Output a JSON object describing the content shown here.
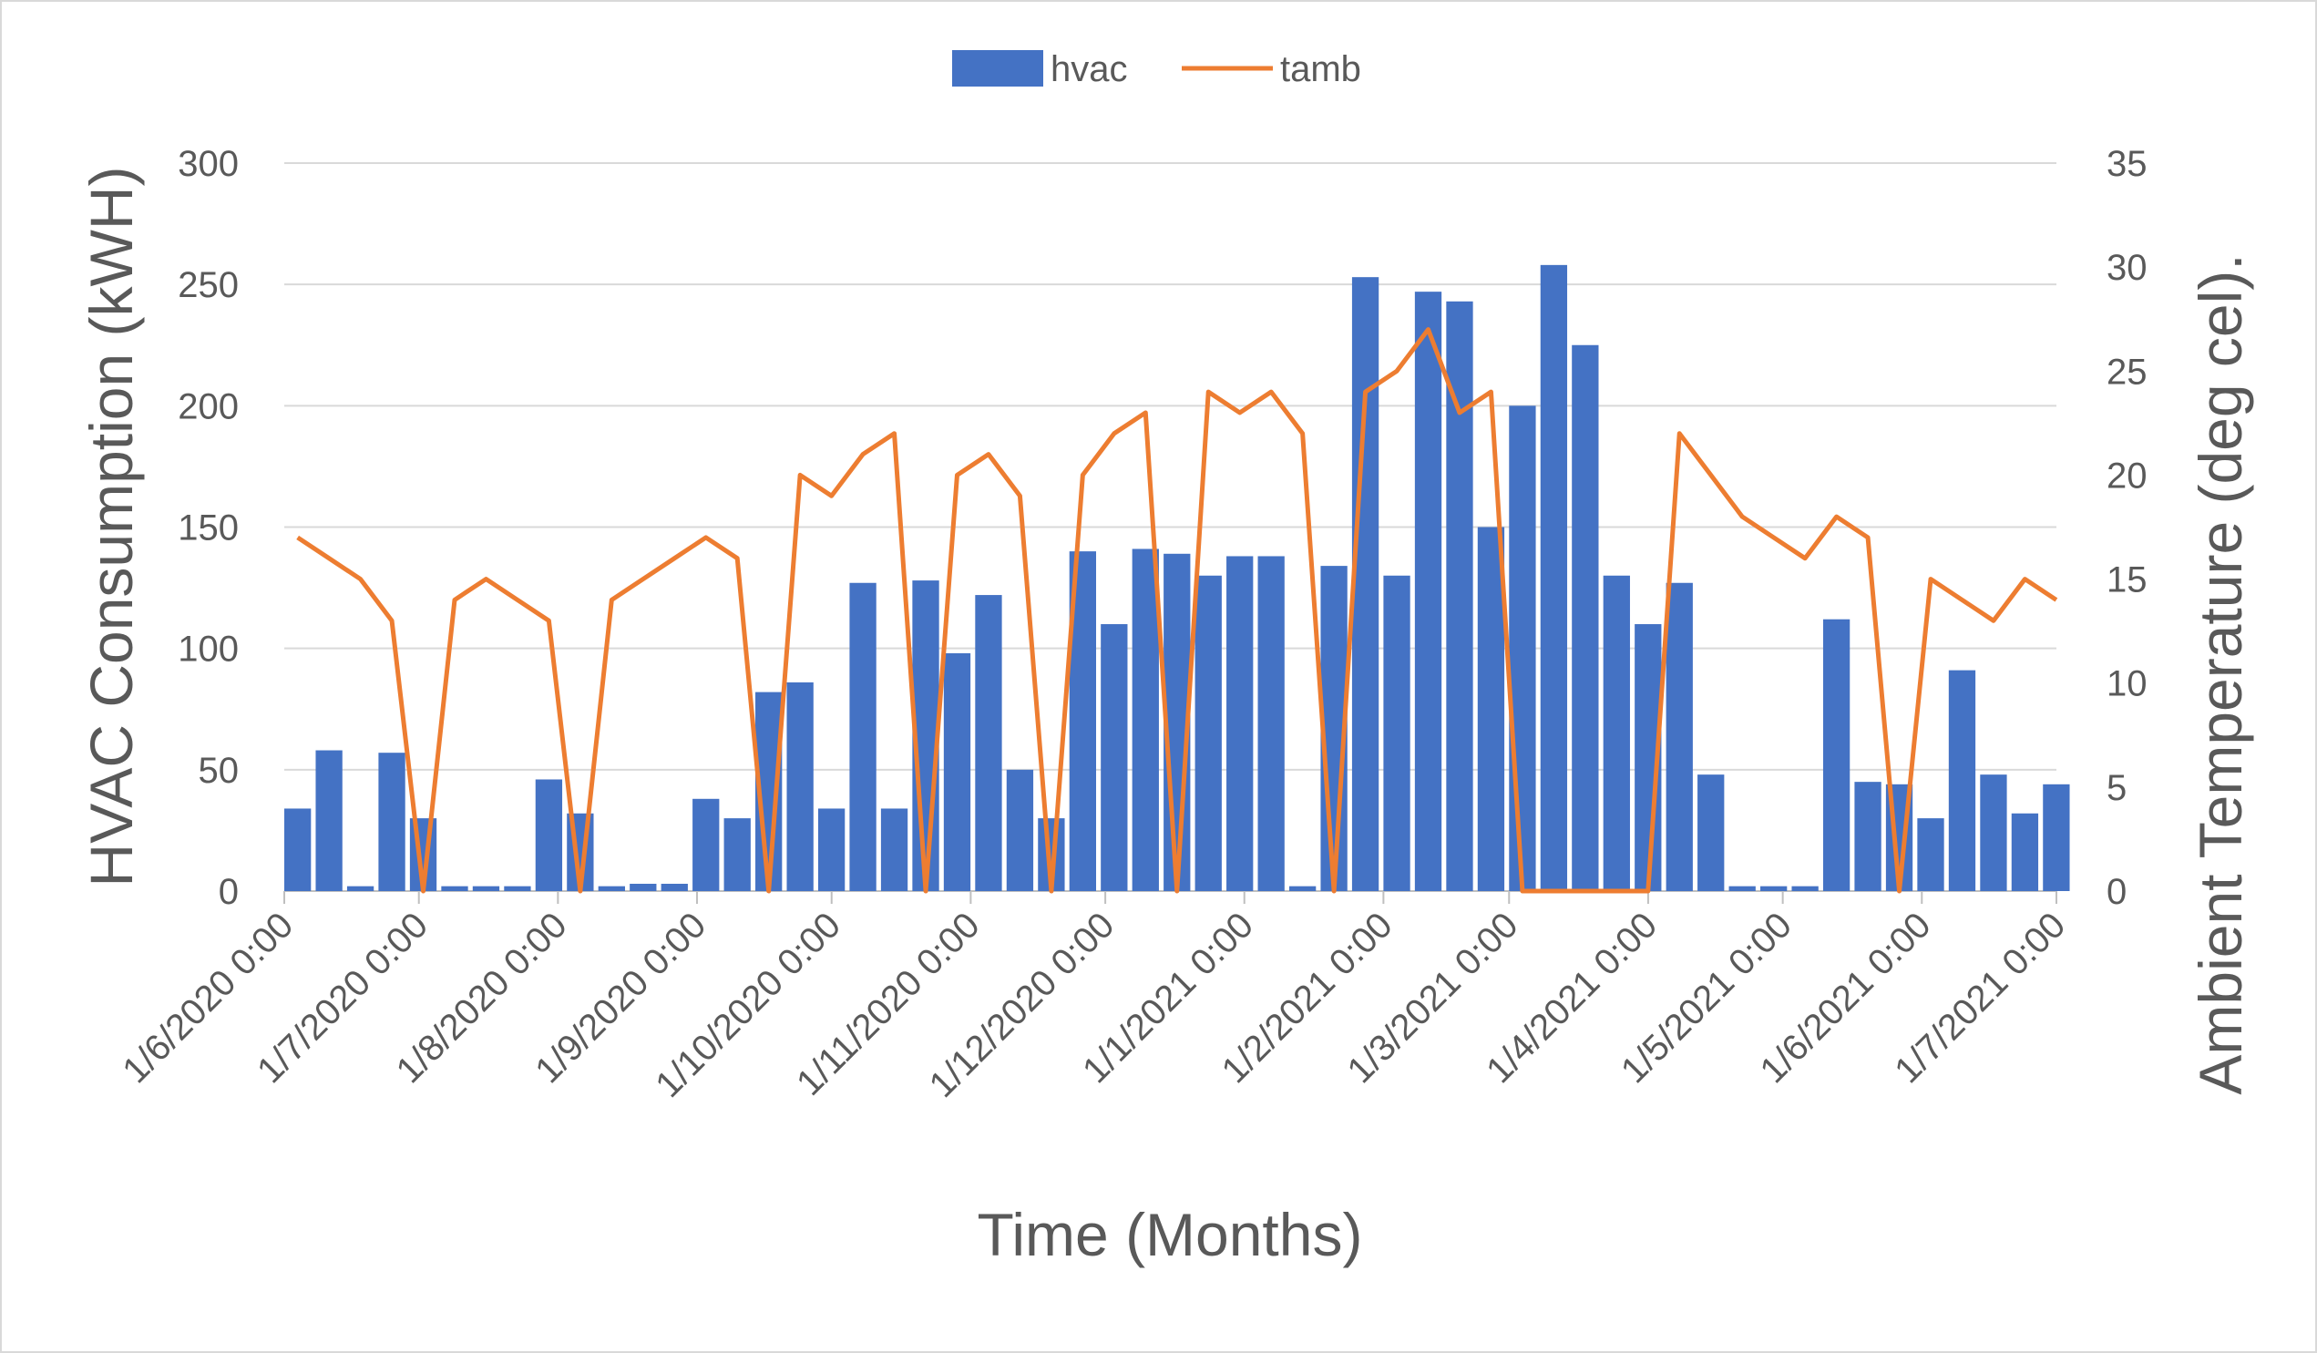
{
  "chart_data": {
    "type": "bar_line",
    "x_axis_label": "Time (Months)",
    "y_axis_label": "HVAC Consumption (kWH)",
    "y2_axis_label": "Ambient Temperature (deg cel).",
    "legend": "top",
    "grid": true,
    "x": [
      "1/6/2020 0:00",
      "8/6/2020 0:00",
      "15/6/2020 0:00",
      "22/6/2020 0:00",
      "29/6/2020 0:00",
      "6/7/2020 0:00",
      "13/7/2020 0:00",
      "20/7/2020 0:00",
      "27/7/2020 0:00",
      "3/8/2020 0:00",
      "10/8/2020 0:00",
      "17/8/2020 0:00",
      "24/8/2020 0:00",
      "31/8/2020 0:00",
      "7/9/2020 0:00",
      "14/9/2020 0:00",
      "21/9/2020 0:00",
      "28/9/2020 0:00",
      "5/10/2020 0:00",
      "12/10/2020 0:00",
      "19/10/2020 0:00",
      "26/10/2020 0:00",
      "2/11/2020 0:00",
      "9/11/2020 0:00",
      "16/11/2020 0:00",
      "23/11/2020 0:00",
      "30/11/2020 0:00",
      "7/12/2020 0:00",
      "14/12/2020 0:00",
      "21/12/2020 0:00",
      "28/12/2020 0:00",
      "4/1/2021 0:00",
      "11/1/2021 0:00",
      "18/1/2021 0:00",
      "25/1/2021 0:00",
      "1/2/2021 0:00",
      "8/2/2021 0:00",
      "15/2/2021 0:00",
      "22/2/2021 0:00",
      "1/3/2021 0:00",
      "8/3/2021 0:00",
      "15/3/2021 0:00",
      "22/3/2021 0:00",
      "29/3/2021 0:00",
      "5/4/2021 0:00",
      "12/4/2021 0:00",
      "19/4/2021 0:00",
      "26/4/2021 0:00",
      "3/5/2021 0:00",
      "10/5/2021 0:00",
      "17/5/2021 0:00",
      "24/5/2021 0:00",
      "31/5/2021 0:00",
      "7/6/2021 0:00",
      "14/6/2021 0:00",
      "21/6/2021 0:00",
      "28/6/2021 0:00"
    ],
    "series": [
      {
        "name": "hvac",
        "color": "#4472c4",
        "values": [
          34,
          58,
          2,
          57,
          30,
          2,
          2,
          2,
          46,
          32,
          2,
          3,
          3,
          38,
          30,
          82,
          86,
          34,
          127,
          34,
          128,
          98,
          122,
          50,
          30,
          140,
          110,
          141,
          139,
          130,
          138,
          138,
          2,
          134,
          253,
          130,
          247,
          243,
          150,
          200,
          258,
          225,
          130,
          110,
          127,
          48,
          2,
          2,
          2,
          112,
          45,
          44,
          30,
          91,
          48,
          32,
          44
        ]
      },
      {
        "name": "tamb",
        "color": "#ed7d31",
        "axis": "y2",
        "values": [
          17,
          16,
          15,
          13,
          0,
          14,
          15,
          14,
          13,
          0,
          14,
          15,
          16,
          17,
          16,
          0,
          20,
          19,
          21,
          22,
          0,
          20,
          21,
          19,
          0,
          20,
          22,
          23,
          0,
          24,
          23,
          24,
          22,
          0,
          24,
          25,
          27,
          23,
          24,
          0,
          0,
          0,
          0,
          0,
          22,
          20,
          18,
          17,
          16,
          18,
          17,
          0,
          15,
          14,
          13,
          15,
          14
        ]
      }
    ],
    "xlim": [
      "1/6/2020 0:00",
      "1/7/2021 0:00"
    ],
    "xticks": [
      "1/6/2020 0:00",
      "1/7/2020 0:00",
      "1/8/2020 0:00",
      "1/9/2020 0:00",
      "1/10/2020 0:00",
      "1/11/2020 0:00",
      "1/12/2020 0:00",
      "1/1/2021 0:00",
      "1/2/2021 0:00",
      "1/3/2021 0:00",
      "1/4/2021 0:00",
      "1/5/2021 0:00",
      "1/6/2021 0:00",
      "1/7/2021 0:00"
    ],
    "ylim": [
      0,
      300
    ],
    "yticks": [
      0,
      50,
      100,
      150,
      200,
      250,
      300
    ],
    "y2lim": [
      0,
      35
    ],
    "y2ticks": [
      0,
      5,
      10,
      15,
      20,
      25,
      30,
      35
    ]
  }
}
